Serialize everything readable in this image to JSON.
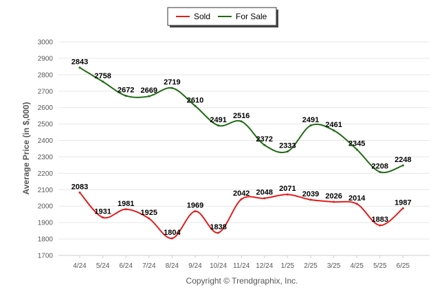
{
  "chart_data": {
    "type": "line",
    "title": "",
    "ylabel": "Average Price (in $,000)",
    "xlabel": "",
    "categories": [
      "4/24",
      "5/24",
      "6/24",
      "7/24",
      "8/24",
      "9/24",
      "10/24",
      "11/24",
      "12/24",
      "1/25",
      "2/25",
      "3/25",
      "4/25",
      "5/25",
      "6/25"
    ],
    "ylim": [
      1700,
      3000
    ],
    "yticks": [
      1700,
      1800,
      1900,
      2000,
      2100,
      2200,
      2300,
      2400,
      2500,
      2600,
      2700,
      2800,
      2900,
      3000
    ],
    "grid": true,
    "legend_position": "top-center",
    "series": [
      {
        "name": "Sold",
        "color": "#e31b1b",
        "values": [
          2083,
          1931,
          1981,
          1925,
          1804,
          1969,
          1838,
          2042,
          2048,
          2071,
          2039,
          2026,
          2014,
          1883,
          1987
        ]
      },
      {
        "name": "For Sale",
        "color": "#1f6b12",
        "values": [
          2843,
          2758,
          2672,
          2669,
          2719,
          2610,
          2491,
          2516,
          2372,
          2333,
          2491,
          2461,
          2345,
          2208,
          2248
        ]
      }
    ]
  },
  "footer": "Copyright © Trendgraphix, Inc."
}
